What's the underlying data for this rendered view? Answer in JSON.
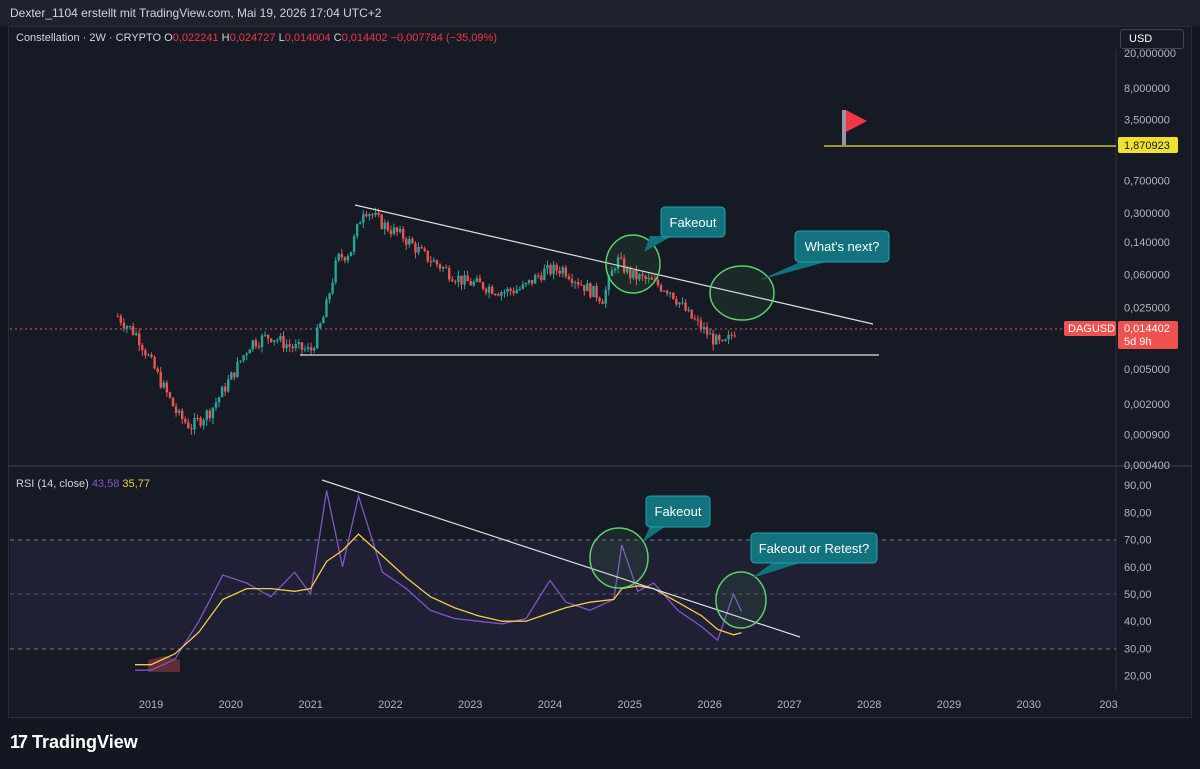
{
  "header": {
    "caption": "Dexter_1104 erstellt mit TradingView.com, Mai 19, 2026 17:04 UTC+2"
  },
  "legend": {
    "symbol": "Constellation · 2W · CRYPTO",
    "o_label": "O",
    "o": "0,022241",
    "h_label": "H",
    "h": "0,024727",
    "l_label": "L",
    "l": "0,014004",
    "c_label": "C",
    "c": "0,014402",
    "change": "−0,007784 (−35,09%)"
  },
  "currency_button": "USD",
  "price_axis": {
    "ticks": [
      "20,000000",
      "8,000000",
      "3,500000",
      "1,870923",
      "0,700000",
      "0,300000",
      "0,140000",
      "0,060000",
      "0,025000",
      "0,014402",
      "0,005000",
      "0,002000",
      "0,000900",
      "0,000400"
    ],
    "target_label": "1,870923",
    "current_label": "0,014402",
    "countdown": "5d 9h",
    "symbol_badge": "DAGUSD"
  },
  "rsi": {
    "legend_name": "RSI (14, close)",
    "rsi_value": "43,58",
    "ma_value": "35,77",
    "ticks": [
      "90,00",
      "80,00",
      "70,00",
      "60,00",
      "50,00",
      "40,00",
      "30,00",
      "20,00"
    ]
  },
  "time_axis": {
    "labels": [
      "2019",
      "2020",
      "2021",
      "2022",
      "2023",
      "2024",
      "2025",
      "2026",
      "2027",
      "2028",
      "2029",
      "2030",
      "203"
    ]
  },
  "annotations": {
    "fakeout_price": "Fakeout",
    "whats_next": "What's next?",
    "fakeout_rsi": "Fakeout",
    "fakeout_retest": "Fakeout or Retest?"
  },
  "brand": "TradingView",
  "colors": {
    "background": "#161a25",
    "up": "#26a69a",
    "down": "#ef5350",
    "rsi_line": "#7e57c2",
    "rsi_ma": "#f7c948",
    "callout": "#12737f",
    "circle": "#4caf50",
    "target_line": "#f0e130"
  },
  "chart_data": [
    {
      "type": "candlestick",
      "title": "Constellation · 2W · CRYPTO",
      "scale": "log",
      "y_ticks": [
        20,
        8,
        3.5,
        0.7,
        0.3,
        0.14,
        0.06,
        0.025,
        0.005,
        0.002,
        0.0009,
        0.0004
      ],
      "x_ticks": [
        "2019",
        "2020",
        "2021",
        "2022",
        "2023",
        "2024",
        "2025",
        "2026",
        "2027",
        "2028",
        "2029",
        "2030"
      ],
      "series": [
        {
          "name": "DAGUSD close (approx.)",
          "x": [
            "2018-08",
            "2018-11",
            "2019-01",
            "2019-03",
            "2019-05",
            "2019-07",
            "2019-10",
            "2020-01",
            "2020-04",
            "2020-07",
            "2020-10",
            "2021-01",
            "2021-03",
            "2021-05",
            "2021-07",
            "2021-09",
            "2021-12",
            "2022-03",
            "2022-06",
            "2022-09",
            "2022-12",
            "2023-03",
            "2023-06",
            "2023-09",
            "2023-12",
            "2024-03",
            "2024-06",
            "2024-09",
            "2024-11",
            "2025-01",
            "2025-04",
            "2025-07",
            "2025-10",
            "2026-01",
            "2026-03",
            "2026-05"
          ],
          "values": [
            0.02,
            0.012,
            0.006,
            0.003,
            0.0015,
            0.0011,
            0.0017,
            0.004,
            0.01,
            0.012,
            0.009,
            0.008,
            0.02,
            0.09,
            0.11,
            0.35,
            0.22,
            0.16,
            0.1,
            0.07,
            0.05,
            0.045,
            0.038,
            0.042,
            0.065,
            0.07,
            0.045,
            0.032,
            0.09,
            0.06,
            0.05,
            0.04,
            0.02,
            0.012,
            0.009,
            0.014402
          ]
        }
      ],
      "levels": {
        "target": 1.870923,
        "current": 0.014402
      }
    },
    {
      "type": "line",
      "title": "RSI (14, close)",
      "ylim": [
        15,
        95
      ],
      "bands": [
        30,
        50,
        70
      ],
      "series": [
        {
          "name": "RSI",
          "x": [
            2018.8,
            2019.0,
            2019.3,
            2019.6,
            2019.9,
            2020.2,
            2020.5,
            2020.8,
            2021.0,
            2021.2,
            2021.4,
            2021.6,
            2021.9,
            2022.2,
            2022.5,
            2022.8,
            2023.1,
            2023.4,
            2023.7,
            2024.0,
            2024.2,
            2024.5,
            2024.8,
            2024.9,
            2025.1,
            2025.3,
            2025.6,
            2025.9,
            2026.1,
            2026.3,
            2026.4
          ],
          "values": [
            22,
            22,
            26,
            40,
            57,
            54,
            49,
            58,
            50,
            88,
            60,
            86,
            58,
            52,
            44,
            41,
            40,
            39,
            41,
            55,
            47,
            44,
            48,
            68,
            51,
            54,
            44,
            38,
            33,
            50,
            43.58
          ]
        },
        {
          "name": "MA",
          "x": [
            2018.8,
            2019.0,
            2019.3,
            2019.6,
            2019.9,
            2020.2,
            2020.5,
            2020.8,
            2021.0,
            2021.2,
            2021.4,
            2021.6,
            2021.9,
            2022.2,
            2022.5,
            2022.8,
            2023.1,
            2023.4,
            2023.7,
            2024.0,
            2024.2,
            2024.5,
            2024.8,
            2024.9,
            2025.1,
            2025.3,
            2025.6,
            2025.9,
            2026.1,
            2026.3,
            2026.4
          ],
          "values": [
            24,
            24,
            28,
            36,
            48,
            52,
            52,
            51,
            52,
            62,
            66,
            72,
            64,
            56,
            49,
            45,
            42,
            40,
            40,
            43,
            45,
            47,
            48,
            52,
            53,
            52,
            47,
            42,
            37,
            35,
            35.77
          ]
        }
      ]
    }
  ]
}
